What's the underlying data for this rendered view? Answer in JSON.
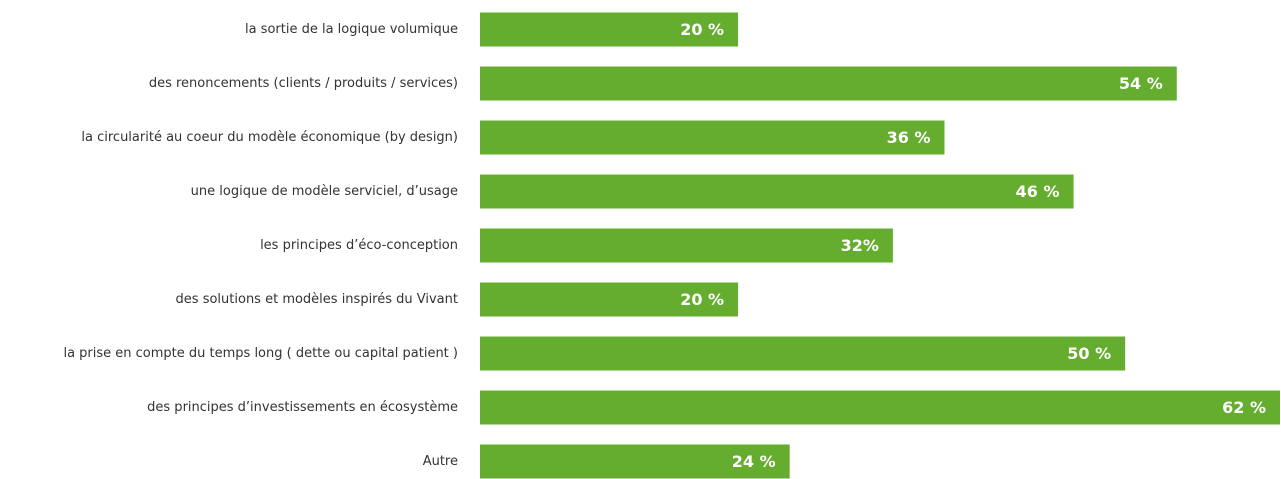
{
  "chart_data": {
    "type": "bar",
    "orientation": "horizontal",
    "categories": [
      "la sortie de la logique volumique",
      "des renoncements (clients / produits / services)",
      "la circularité au coeur du modèle économique (by design)",
      "une logique de modèle serviciel, d’usage",
      "les principes d’éco-conception",
      "des solutions et modèles inspirés du Vivant",
      "la prise en compte du temps long ( dette ou capital patient )",
      "des principes d’investissements en écosystème",
      "Autre"
    ],
    "values": [
      20,
      54,
      36,
      46,
      32,
      20,
      50,
      62,
      24
    ],
    "value_labels": [
      "20 %",
      "54 %",
      "36 %",
      "46 %",
      "32%",
      "20 %",
      "50 %",
      "62 %",
      "24 %"
    ],
    "color": "#65ad2e",
    "xlim": [
      0,
      62
    ]
  }
}
